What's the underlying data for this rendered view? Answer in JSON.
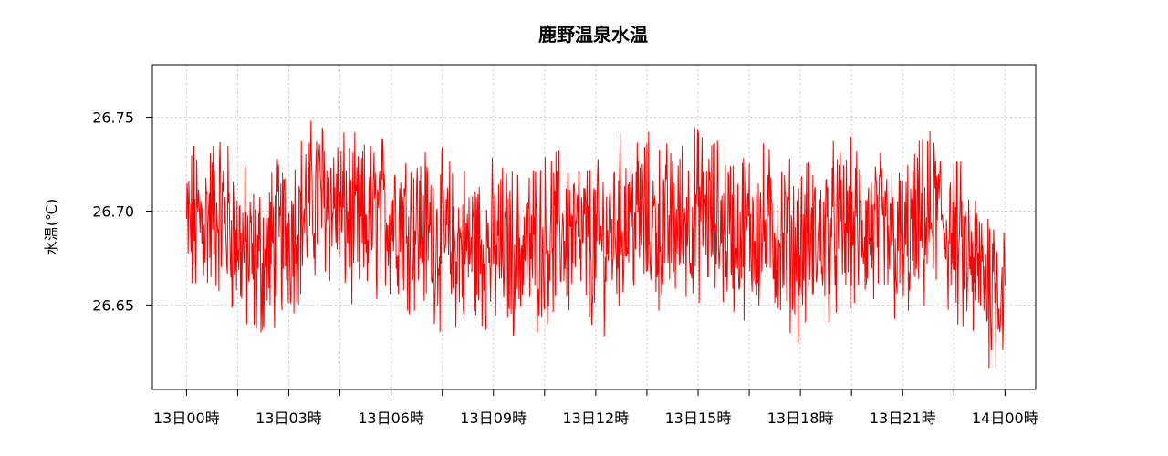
{
  "chart_data": {
    "type": "line",
    "title": "鹿野温泉水温",
    "xlabel": "",
    "ylabel": "水温(℃)",
    "x_tick_labels": [
      "13日00時",
      "13日03時",
      "13日06時",
      "13日09時",
      "13日12時",
      "13日15時",
      "13日18時",
      "13日21時",
      "14日00時"
    ],
    "y_tick_labels": [
      "26.65",
      "26.70",
      "26.75"
    ],
    "y_ticks": [
      26.65,
      26.7,
      26.75
    ],
    "ylim": [
      26.605,
      26.778
    ],
    "xlim_hours": [
      -1.0,
      24.9
    ],
    "grid": true,
    "series": [
      {
        "color": "#ff0000",
        "x_hours": [
          0,
          1,
          2,
          3,
          4,
          5,
          6,
          7,
          8,
          9,
          10,
          11,
          12,
          13,
          14,
          15,
          16,
          17,
          18,
          19,
          20,
          21,
          22,
          23,
          24
        ],
        "values": [
          26.69,
          26.7,
          26.67,
          26.69,
          26.71,
          26.69,
          26.7,
          26.69,
          26.68,
          26.68,
          26.68,
          26.69,
          26.68,
          26.7,
          26.69,
          26.7,
          26.69,
          26.69,
          26.68,
          26.69,
          26.69,
          26.68,
          26.7,
          26.67,
          26.66
        ]
      }
    ]
  }
}
